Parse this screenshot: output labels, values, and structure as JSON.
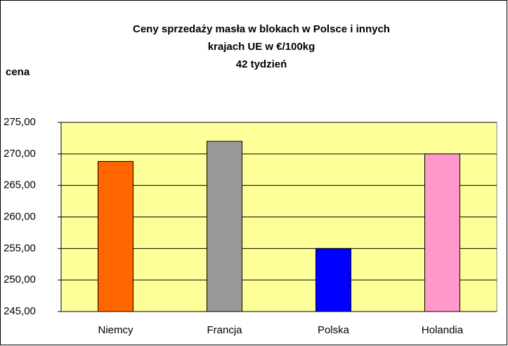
{
  "chart_data": {
    "type": "bar",
    "title": [
      "Ceny sprzedaży masła w blokach w Polsce i  innych",
      "krajach UE w €/100kg",
      "42 tydzień"
    ],
    "y_label": "cena",
    "categories": [
      "Niemcy",
      "Francja",
      "Polska",
      "Holandia"
    ],
    "values": [
      268.8,
      272.0,
      255.0,
      270.0
    ],
    "colors": [
      "#ff6600",
      "#999999",
      "#0000ff",
      "#ff99cc"
    ],
    "ylim": [
      245,
      275
    ],
    "yticks": [
      {
        "value": 245,
        "label": "245,00"
      },
      {
        "value": 250,
        "label": "250,00"
      },
      {
        "value": 255,
        "label": "255,00"
      },
      {
        "value": 260,
        "label": "260,00"
      },
      {
        "value": 265,
        "label": "265,00"
      },
      {
        "value": 270,
        "label": "270,00"
      },
      {
        "value": 275,
        "label": "275,00"
      }
    ],
    "grid": true
  }
}
